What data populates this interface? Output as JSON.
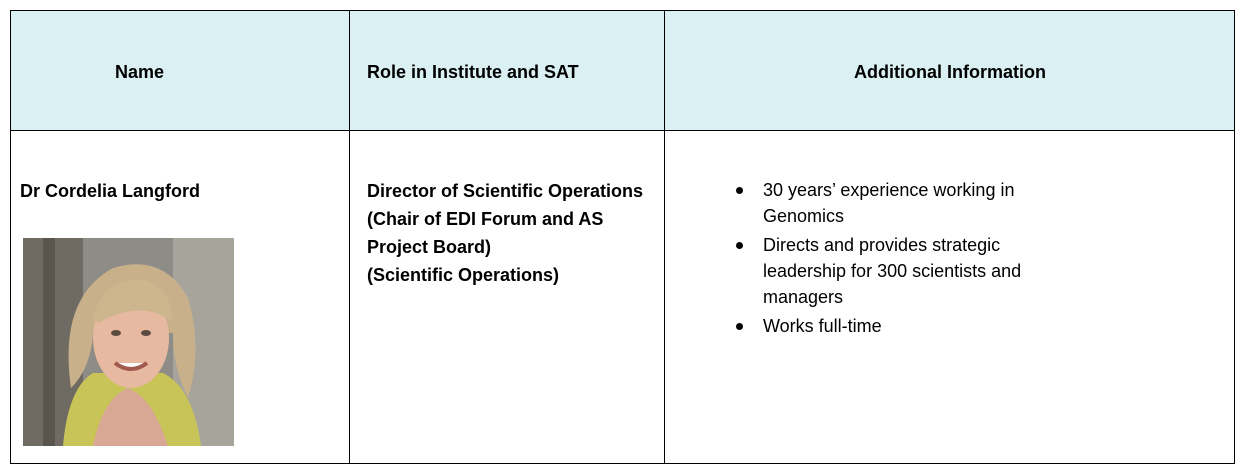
{
  "table": {
    "header": [
      "Name",
      "Role in Institute and SAT",
      "Additional Information"
    ],
    "rows": [
      {
        "name": "Dr Cordelia Langford",
        "role": [
          "Director of Scientific Operations",
          "(Chair of EDI Forum and AS Project Board)",
          "(Scientific Operations)"
        ],
        "info": [
          "30 years’ experience working in Genomics",
          "Directs and provides strategic leadership for 300 scientists and managers",
          "Works full-time"
        ]
      }
    ]
  }
}
